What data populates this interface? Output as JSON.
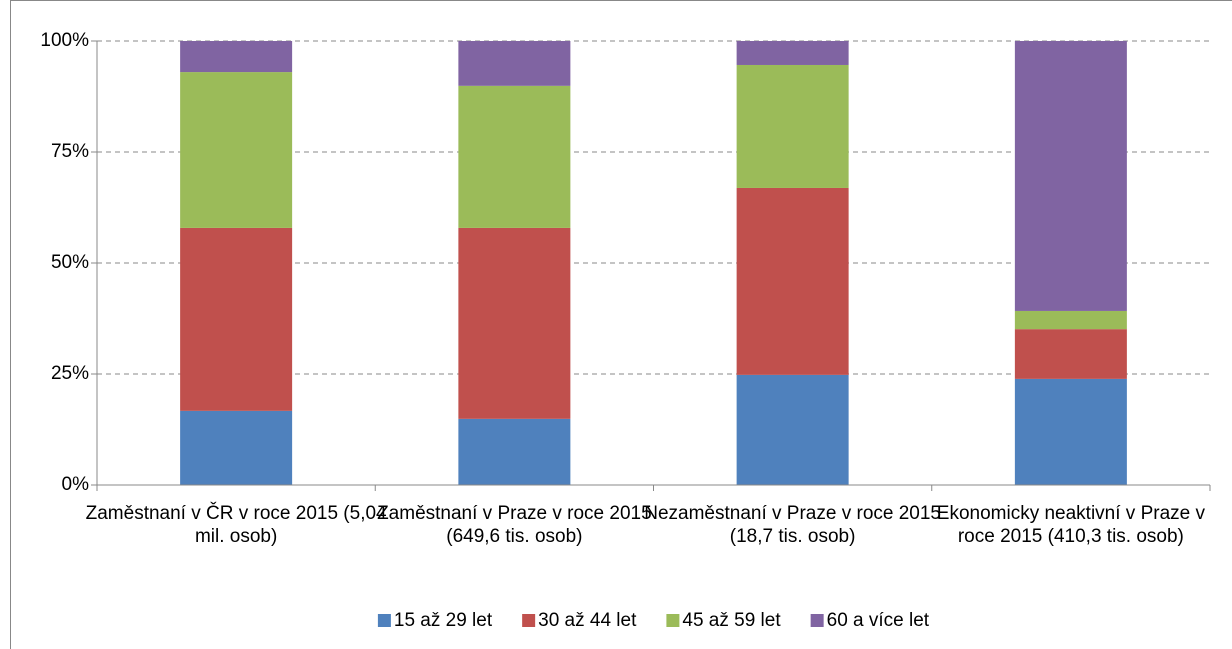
{
  "chart_data": {
    "type": "stacked_bar",
    "categories": [
      "Zaměstnaní v ČR v roce 2015 (5,04 mil. osob)",
      "Zaměstnaní v Praze v roce 2015 (649,6 tis. osob)",
      "Nezaměstnaní v Praze v roce 2015 (18,7 tis. osob)",
      "Ekonomicky neaktivní v Praze v roce 2015 (410,3 tis. osob)"
    ],
    "series": [
      {
        "name": "15 až 29 let",
        "color": "#4f81bd",
        "values": [
          16.7,
          14.9,
          24.8,
          23.9
        ]
      },
      {
        "name": "30 až 44 let",
        "color": "#c0504d",
        "values": [
          41.2,
          43.0,
          42.1,
          11.2
        ]
      },
      {
        "name": "45 až 59 let",
        "color": "#9bbb59",
        "values": [
          35.1,
          32.0,
          27.7,
          4.1
        ]
      },
      {
        "name": "60 a více let",
        "color": "#8064a2",
        "values": [
          7.0,
          10.1,
          5.4,
          60.8
        ]
      }
    ],
    "ylim": [
      0,
      100
    ],
    "yticks": [
      {
        "value": 0,
        "label": "0%"
      },
      {
        "value": 25,
        "label": "25%"
      },
      {
        "value": 50,
        "label": "50%"
      },
      {
        "value": 75,
        "label": "75%"
      },
      {
        "value": 100,
        "label": "100%"
      }
    ],
    "grid": true,
    "legend": "bottom"
  }
}
